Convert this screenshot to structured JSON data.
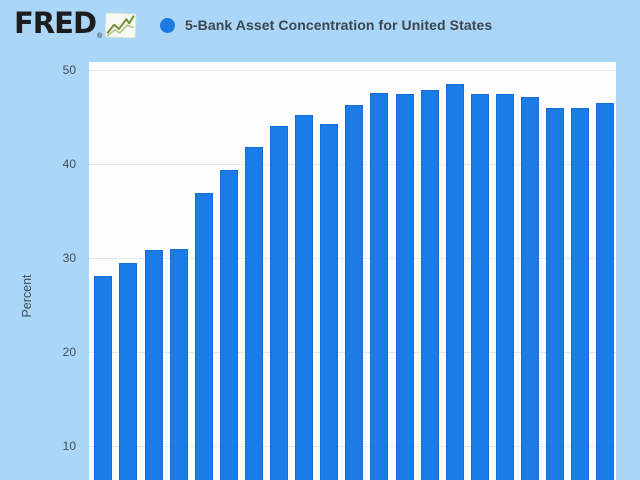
{
  "header": {
    "logo_text": "FRED",
    "registered_mark": "®",
    "legend_marker_color": "#1d78e2",
    "title": "5-Bank Asset Concentration for United States"
  },
  "chart_data": {
    "type": "bar",
    "title": "5-Bank Asset Concentration for United States",
    "ylabel": "Percent",
    "xlabel": "",
    "values": [
      28.1,
      29.5,
      30.9,
      31.0,
      36.9,
      39.4,
      41.8,
      44.0,
      45.2,
      44.3,
      46.3,
      47.6,
      47.5,
      47.9,
      48.5,
      47.4,
      47.4,
      47.1,
      46.0,
      46.0,
      46.5
    ],
    "n_bars": 21,
    "yticks": [
      50,
      40,
      30,
      20,
      10
    ],
    "x_axis_labels_visible": false,
    "grid": true,
    "legend_position": "top",
    "bar_color": "#1b7ce8",
    "plot_background": "#fefefe",
    "page_background": "#aad6f7"
  }
}
